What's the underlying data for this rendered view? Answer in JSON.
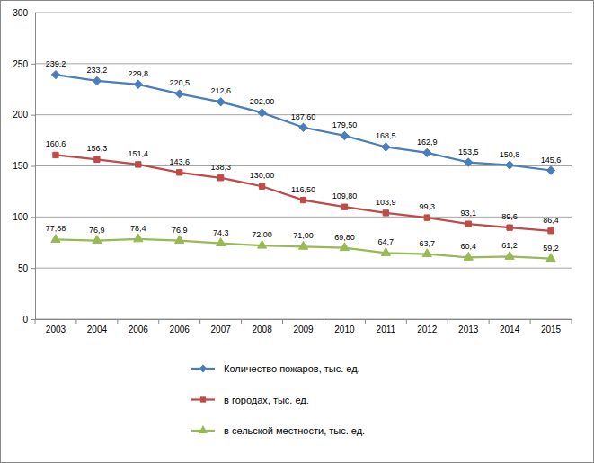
{
  "chart_data": {
    "type": "line",
    "categories": [
      "2003",
      "2004",
      "2006",
      "2006",
      "2007",
      "2008",
      "2009",
      "2010",
      "2011",
      "2012",
      "2013",
      "2014",
      "2015"
    ],
    "series": [
      {
        "name": "Количество пожаров, тыс. ед.",
        "color": "#4a7ebb",
        "marker": "diamond",
        "values": [
          239.2,
          233.2,
          229.8,
          220.5,
          212.6,
          202.0,
          187.6,
          179.5,
          168.5,
          162.9,
          153.5,
          150.8,
          145.6
        ],
        "value_labels": [
          "239,2",
          "233,2",
          "229,8",
          "220,5",
          "212,6",
          "202,00",
          "187,60",
          "179,50",
          "168,5",
          "162,9",
          "153,5",
          "150,8",
          "145,6"
        ]
      },
      {
        "name": "в городах, тыс. ед.",
        "color": "#be4b48",
        "marker": "square",
        "values": [
          160.6,
          156.3,
          151.4,
          143.6,
          138.3,
          130.0,
          116.5,
          109.8,
          103.9,
          99.3,
          93.1,
          89.6,
          86.4
        ],
        "value_labels": [
          "160,6",
          "156,3",
          "151,4",
          "143,6",
          "138,3",
          "130,00",
          "116,50",
          "109,80",
          "103,9",
          "99,3",
          "93,1",
          "89,6",
          "86,4"
        ]
      },
      {
        "name": "в сельской местности, тыс. ед.",
        "color": "#98b954",
        "marker": "triangle",
        "values": [
          77.88,
          76.9,
          78.4,
          76.9,
          74.3,
          72.0,
          71.0,
          69.8,
          64.7,
          63.7,
          60.4,
          61.2,
          59.2
        ],
        "value_labels": [
          "77,88",
          "76,9",
          "78,4",
          "76,9",
          "74,3",
          "72,00",
          "71,00",
          "69,80",
          "64,7",
          "63,7",
          "60,4",
          "61,2",
          "59,2"
        ]
      }
    ],
    "ylim": [
      0,
      300
    ],
    "yticks": [
      0,
      50,
      100,
      150,
      200,
      250,
      300
    ],
    "grid": true,
    "data_labels": true,
    "legend": "bottom"
  }
}
